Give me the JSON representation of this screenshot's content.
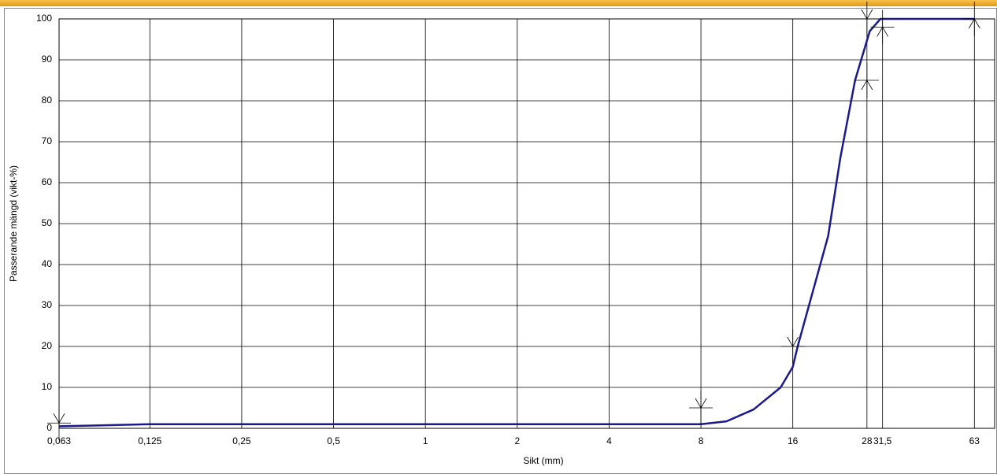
{
  "chart_data": {
    "type": "line",
    "xlog": true,
    "grid": true,
    "x_label": "Sikt (mm)",
    "y_label": "Passerande mängd (vikt-%)",
    "xlim": [
      0.063,
      73.4
    ],
    "ylim": [
      0,
      100
    ],
    "xticks": [
      {
        "value": 0.063,
        "label": "0,063"
      },
      {
        "value": 0.125,
        "label": "0,125"
      },
      {
        "value": 0.25,
        "label": "0,25"
      },
      {
        "value": 0.5,
        "label": "0,5"
      },
      1,
      2,
      4,
      8,
      16,
      28,
      {
        "value": 31.5,
        "label": "31,5"
      },
      63
    ],
    "yticks": [
      0,
      10,
      20,
      30,
      40,
      50,
      60,
      70,
      80,
      90,
      100
    ],
    "series": [
      {
        "color": "#1a1a8c",
        "x": [
          0.063,
          0.125,
          8,
          9.7,
          11.9,
          14.6,
          16,
          16.6,
          20.9,
          22.9,
          25.6,
          28.6,
          31,
          63
        ],
        "values": [
          0.5,
          1,
          1,
          1.7,
          4.6,
          10,
          15,
          20,
          47,
          66,
          85,
          97,
          100,
          100
        ]
      }
    ],
    "upper_limits": {
      "x": [
        0.063,
        8,
        16,
        28
      ],
      "values": [
        1.3,
        5,
        20,
        100
      ]
    },
    "lower_limits": {
      "x": [
        28,
        31.5,
        63
      ],
      "values": [
        85,
        98,
        100
      ]
    }
  }
}
